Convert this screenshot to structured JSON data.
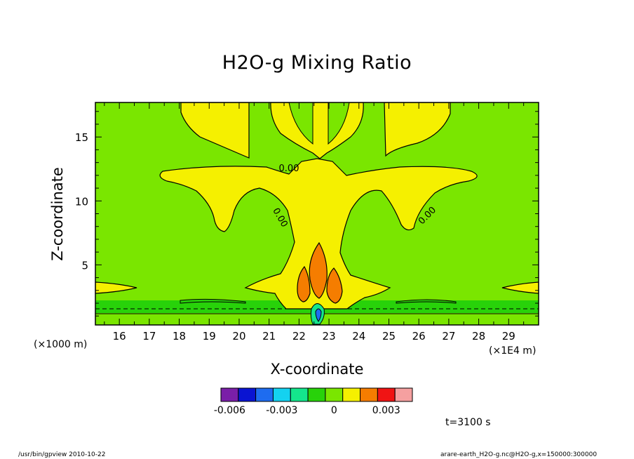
{
  "chart_data": {
    "type": "contour",
    "title": "H2O-g Mixing Ratio",
    "xlabel": "X-coordinate",
    "ylabel": "Z-coordinate",
    "x_unit_left": "(×1000 m)",
    "x_unit_right": "(×1E4 m)",
    "xlim": [
      15.2,
      30.0
    ],
    "ylim": [
      0.3,
      17.7
    ],
    "x_ticks": [
      16,
      17,
      18,
      19,
      20,
      21,
      22,
      23,
      24,
      25,
      26,
      27,
      28,
      29
    ],
    "x_tick_labels": [
      "16",
      "17",
      "18",
      "19",
      "20",
      "21",
      "22",
      "23",
      "24",
      "25",
      "26",
      "27",
      "28",
      "29"
    ],
    "y_ticks": [
      5,
      10,
      15
    ],
    "y_tick_labels": [
      "5",
      "10",
      "15"
    ],
    "contour_labels": [
      "0.00",
      "0.00",
      "0.00"
    ],
    "colorbar": {
      "colors": [
        "#7a1fa8",
        "#0a14d2",
        "#1e6cf0",
        "#14d2f0",
        "#14e68c",
        "#28d20a",
        "#7ae600",
        "#f5f000",
        "#f57d00",
        "#f01414",
        "#f5a0a0"
      ],
      "tick_values": [
        -0.006,
        -0.003,
        0,
        0.003
      ],
      "tick_labels": [
        "-0.006",
        "-0.003",
        "0",
        "0.003"
      ]
    },
    "regions": [
      {
        "level_color": "#7ae600",
        "role": "background"
      },
      {
        "level_color": "#f5f000",
        "role": "positive-anomaly"
      },
      {
        "level_color": "#f57d00",
        "role": "core-maxima"
      },
      {
        "level_color": "#28d20a",
        "role": "low-level-band"
      }
    ]
  },
  "time_label": "t=3100 s",
  "footer": {
    "left": "/usr/bin/gpview   2010-10-22",
    "right": "arare-earth_H2O-g.nc@H2O-g,x=150000:300000"
  }
}
